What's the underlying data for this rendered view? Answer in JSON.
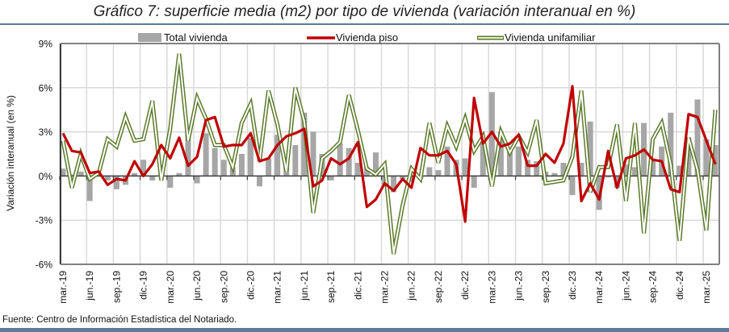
{
  "title": "Gráfico 7: superficie media (m2) por tipo de vivienda (variación interanual en %)",
  "footnote": "Fuente: Centro de Información Estadística del Notariado.",
  "chart_data": {
    "type": "bar+line",
    "title": "Gráfico 7: superficie media (m2) por tipo de vivienda (variación interanual en %)",
    "xlabel": "",
    "ylabel": "Variación interanual (en %)",
    "ylim": [
      -6,
      9
    ],
    "yticks": [
      -6,
      -3,
      0,
      3,
      6,
      9
    ],
    "ytick_labels": [
      "-6%",
      "-3%",
      "0%",
      "3%",
      "6%",
      "9%"
    ],
    "grid": true,
    "legend_position": "top",
    "x_start": "mar-19",
    "x_tick_labels": [
      "mar.-19",
      "jun.-19",
      "sep.-19",
      "dic.-19",
      "mar.-20",
      "jun.-20",
      "sep.-20",
      "dic.-20",
      "mar.-21",
      "jun.-21",
      "sep.-21",
      "dic.-21",
      "mar.-22",
      "jun.-22",
      "sep.-22",
      "dic.-22",
      "mar.-23",
      "jun.-23",
      "sep.-23",
      "dic.-23",
      "mar.-24",
      "jun.-24",
      "sep.-24",
      "dic.-24",
      "mar.-25"
    ],
    "series": [
      {
        "name": "Total vivienda",
        "kind": "bar",
        "color": "#a6a6a6",
        "values": [
          0.5,
          0.1,
          0.3,
          -1.7,
          0.0,
          -0.3,
          -0.9,
          -0.6,
          0.2,
          1.1,
          -0.3,
          0.6,
          -0.8,
          0.2,
          3.0,
          -0.5,
          2.9,
          1.9,
          1.1,
          0.6,
          1.5,
          2.6,
          -0.7,
          1.2,
          2.8,
          0.8,
          2.1,
          4.3,
          3.0,
          1.5,
          -0.3,
          2.2,
          1.9,
          0.9,
          0.6,
          1.6,
          -0.6,
          -1.1,
          -0.2,
          -0.4,
          -0.2,
          0.6,
          0.4,
          2.0,
          1.1,
          1.2,
          -0.8,
          2.5,
          5.7,
          3.0,
          1.9,
          2.0,
          1.1,
          1.0,
          0.3,
          0.2,
          0.9,
          -1.3,
          0.9,
          3.7,
          -2.3,
          -0.1,
          -0.8,
          0.8,
          0.6,
          3.6,
          1.2,
          2.0,
          4.3,
          0.7,
          2.6,
          5.2,
          2.5,
          2.1
        ]
      },
      {
        "name": "Vivienda piso",
        "kind": "line",
        "color": "#c00000",
        "values": [
          2.9,
          1.7,
          1.6,
          0.2,
          0.3,
          -0.6,
          -0.2,
          -0.3,
          1.0,
          0.0,
          0.8,
          2.1,
          1.2,
          2.6,
          0.7,
          1.3,
          3.8,
          4.0,
          2.0,
          2.1,
          2.1,
          2.9,
          1.0,
          1.2,
          2.1,
          2.7,
          2.9,
          3.2,
          -0.7,
          -0.3,
          1.2,
          0.8,
          1.2,
          2.3,
          -2.1,
          -1.6,
          -0.5,
          -1.0,
          -0.2,
          -0.8,
          1.9,
          1.4,
          1.4,
          1.7,
          0.8,
          -3.1,
          5.3,
          2.2,
          3.0,
          2.0,
          2.2,
          2.8,
          0.7,
          0.7,
          1.5,
          0.9,
          2.2,
          6.1,
          -1.7,
          -0.5,
          -1.6,
          1.7,
          -0.8,
          1.2,
          1.4,
          1.8,
          1.1,
          1.0,
          -0.9,
          -1.1,
          4.2,
          4.0,
          2.4,
          0.8
        ]
      },
      {
        "name": "Vivienda unifamiliar",
        "kind": "line",
        "color": "#5a7a2a",
        "values": [
          2.4,
          -0.8,
          1.5,
          -0.2,
          0.2,
          2.5,
          2.0,
          4.0,
          2.4,
          2.5,
          5.1,
          -0.3,
          3.2,
          8.3,
          2.4,
          5.3,
          3.9,
          2.1,
          2.1,
          0.6,
          3.6,
          4.9,
          1.0,
          5.8,
          3.5,
          0.3,
          6.0,
          3.7,
          -2.5,
          1.2,
          1.7,
          2.3,
          5.5,
          3.1,
          0.5,
          0.1,
          0.8,
          -5.3,
          -2.0,
          0.5,
          -0.2,
          3.6,
          0.9,
          3.4,
          2.0,
          3.9,
          1.7,
          2.7,
          -0.7,
          3.0,
          1.6,
          2.7,
          1.6,
          3.8,
          -0.5,
          -0.4,
          -0.3,
          1.3,
          5.8,
          -1.1,
          0.6,
          0.6,
          3.5,
          -1.7,
          3.6,
          -3.9,
          2.5,
          3.6,
          0.8,
          -4.4,
          2.6,
          0.4,
          -3.7,
          4.5
        ]
      }
    ]
  }
}
